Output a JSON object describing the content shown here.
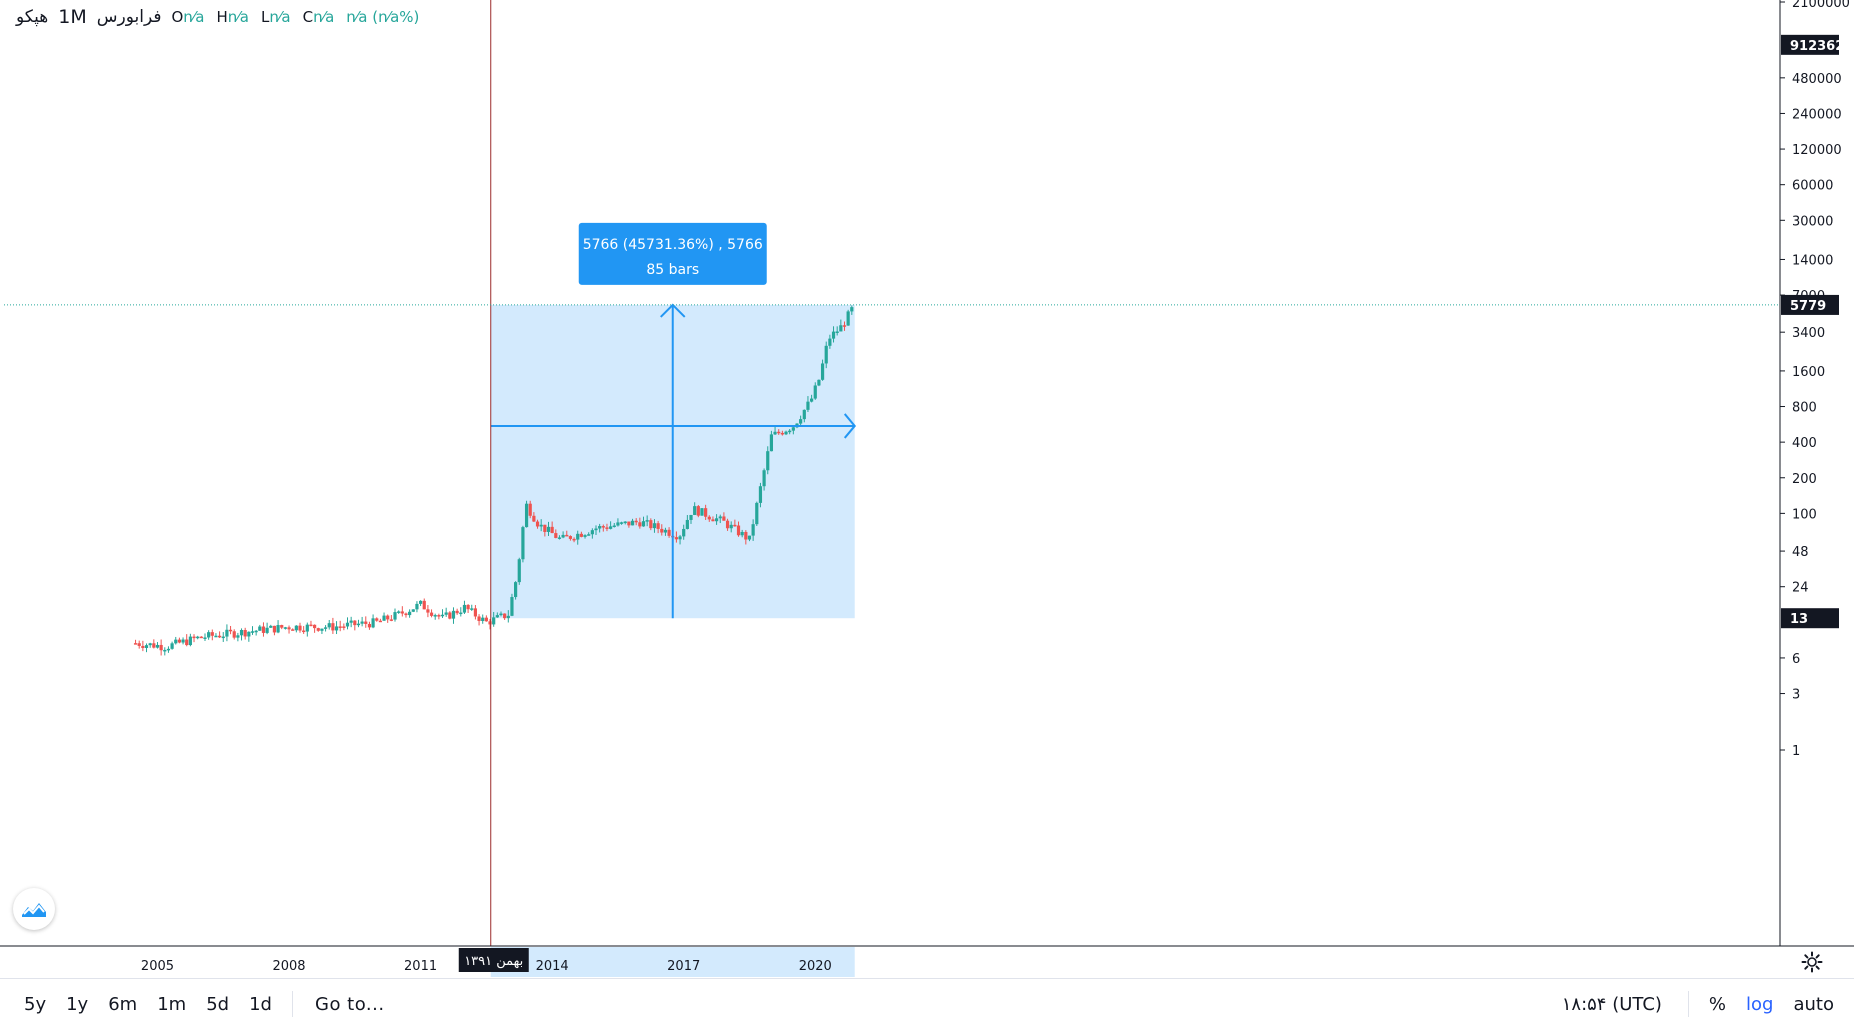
{
  "legend": {
    "symbol": "هپکو",
    "timeframe": "1M",
    "exchange": "فرابورس",
    "open_label": "O",
    "open_value": "n⁄a",
    "high_label": "H",
    "high_value": "n⁄a",
    "low_label": "L",
    "low_value": "n⁄a",
    "close_label": "C",
    "close_value": "n⁄a",
    "change_value": "n⁄a (n⁄a%)"
  },
  "measure": {
    "line1": "5766 (45731.36%) , 5766",
    "line2": "85 bars"
  },
  "crosshair": {
    "time_label": "بهمن ۱۳۹۱"
  },
  "price_scale": {
    "ticks": [
      "2100000",
      "480000",
      "240000",
      "120000",
      "60000",
      "30000",
      "14000",
      "7000",
      "3400",
      "1600",
      "800",
      "400",
      "200",
      "100",
      "48",
      "24",
      "6",
      "3",
      "1"
    ],
    "highlight_top": "912362",
    "last_price": "5779",
    "crosshair_price": "13"
  },
  "time_scale": {
    "ticks": [
      "2005",
      "2008",
      "2011",
      "2014",
      "2017",
      "2020"
    ]
  },
  "chart_data": {
    "type": "candlestick",
    "scale": "log",
    "ylim": [
      1,
      2100000
    ],
    "xlim": [
      2001.5,
      2042.0
    ],
    "up_color": "#26a69a",
    "down_color": "#ef5350",
    "monthly_close_path": [
      {
        "t": 2004.5,
        "v": 8
      },
      {
        "t": 2005.2,
        "v": 7.5
      },
      {
        "t": 2006.0,
        "v": 9
      },
      {
        "t": 2007.0,
        "v": 10
      },
      {
        "t": 2008.0,
        "v": 11
      },
      {
        "t": 2009.0,
        "v": 11
      },
      {
        "t": 2010.0,
        "v": 12
      },
      {
        "t": 2010.5,
        "v": 14
      },
      {
        "t": 2011.0,
        "v": 17
      },
      {
        "t": 2011.5,
        "v": 13
      },
      {
        "t": 2012.0,
        "v": 16
      },
      {
        "t": 2012.5,
        "v": 12
      },
      {
        "t": 2013.0,
        "v": 14
      },
      {
        "t": 2013.2,
        "v": 30
      },
      {
        "t": 2013.4,
        "v": 120
      },
      {
        "t": 2013.7,
        "v": 80
      },
      {
        "t": 2014.2,
        "v": 60
      },
      {
        "t": 2015.0,
        "v": 75
      },
      {
        "t": 2016.0,
        "v": 85
      },
      {
        "t": 2016.9,
        "v": 65
      },
      {
        "t": 2017.2,
        "v": 110
      },
      {
        "t": 2017.9,
        "v": 85
      },
      {
        "t": 2018.5,
        "v": 60
      },
      {
        "t": 2018.8,
        "v": 200
      },
      {
        "t": 2019.0,
        "v": 450
      },
      {
        "t": 2019.5,
        "v": 550
      },
      {
        "t": 2019.9,
        "v": 900
      },
      {
        "t": 2020.1,
        "v": 1400
      },
      {
        "t": 2020.3,
        "v": 3000
      },
      {
        "t": 2020.6,
        "v": 3800
      },
      {
        "t": 2020.9,
        "v": 5779
      }
    ],
    "measure_range": {
      "t_start": 2012.6,
      "t_end": 2020.9,
      "v_start": 13,
      "v_end": 5779
    }
  },
  "ranges": [
    "5y",
    "1y",
    "6m",
    "1m",
    "5d",
    "1d"
  ],
  "goto_label": "Go to...",
  "clock": "۱۸:۵۴ (UTC)",
  "percent_label": "%",
  "log_label": "log",
  "auto_label": "auto"
}
